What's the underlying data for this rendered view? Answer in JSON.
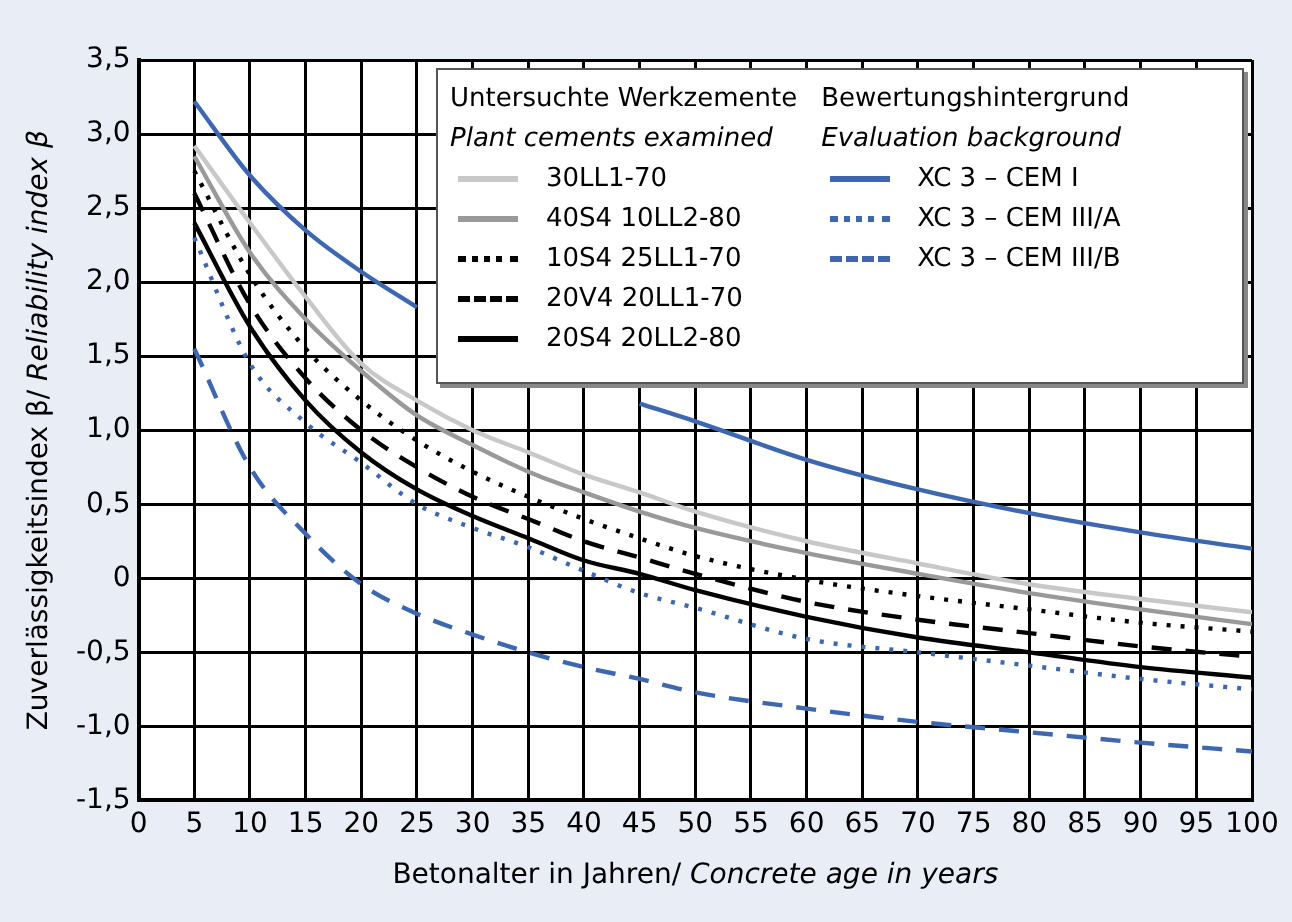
{
  "chart_data": {
    "type": "line",
    "xlabel": "Betonalter in Jahren/ Concrete age in years",
    "ylabel": "Zuverlässigkeitsindex β/ Reliability index β",
    "annotations": [
      "Untersuchte Werkzemente",
      "Plant cements examined",
      "Bewertungshintergrund",
      "Evaluation background"
    ],
    "x": [
      5,
      10,
      15,
      20,
      25,
      30,
      35,
      40,
      45,
      50,
      60,
      70,
      80,
      90,
      100
    ],
    "series": [
      {
        "name": "30LL1-70",
        "color": "#c8c8c8",
        "line_style": "solid",
        "values": [
          2.92,
          2.4,
          1.9,
          1.45,
          1.2,
          1.0,
          0.85,
          0.7,
          0.58,
          0.45,
          0.25,
          0.1,
          -0.04,
          -0.14,
          -0.23
        ]
      },
      {
        "name": "40S4 10LL2-80",
        "color": "#999999",
        "line_style": "solid",
        "values": [
          2.85,
          2.2,
          1.75,
          1.4,
          1.1,
          0.9,
          0.72,
          0.58,
          0.45,
          0.34,
          0.17,
          0.03,
          -0.1,
          -0.21,
          -0.31
        ]
      },
      {
        "name": "10S4 25LL1-70",
        "color": "#000000",
        "line_style": "dotted",
        "values": [
          2.75,
          2.05,
          1.55,
          1.2,
          0.93,
          0.72,
          0.55,
          0.4,
          0.27,
          0.15,
          -0.01,
          -0.12,
          -0.21,
          -0.3,
          -0.36
        ]
      },
      {
        "name": "20V4 20LL1-70",
        "color": "#000000",
        "line_style": "dashed",
        "values": [
          2.6,
          1.85,
          1.35,
          1.0,
          0.75,
          0.55,
          0.4,
          0.25,
          0.14,
          0.03,
          -0.16,
          -0.28,
          -0.37,
          -0.46,
          -0.53
        ]
      },
      {
        "name": "20S4 20LL2-80",
        "color": "#000000",
        "line_style": "solid",
        "values": [
          2.4,
          1.7,
          1.2,
          0.85,
          0.6,
          0.42,
          0.27,
          0.12,
          0.03,
          -0.08,
          -0.26,
          -0.4,
          -0.5,
          -0.6,
          -0.67
        ]
      },
      {
        "name": "XC 3 – CEM I",
        "color": "#3d67b1",
        "line_style": "solid",
        "values": [
          3.22,
          2.72,
          2.35,
          2.07,
          1.83,
          null,
          null,
          null,
          1.18,
          1.06,
          0.8,
          0.6,
          0.44,
          0.31,
          0.2
        ]
      },
      {
        "name": "XC 3 – CEM III/A",
        "color": "#3d67b1",
        "line_style": "dotted",
        "values": [
          2.3,
          1.45,
          1.05,
          0.78,
          0.5,
          0.34,
          0.21,
          0.05,
          -0.1,
          -0.2,
          -0.41,
          -0.5,
          -0.59,
          -0.68,
          -0.75
        ]
      },
      {
        "name": "XC 3 – CEM III/B",
        "color": "#3d67b1",
        "line_style": "dashed",
        "values": [
          1.55,
          0.75,
          0.3,
          -0.04,
          -0.24,
          -0.38,
          -0.5,
          -0.6,
          -0.68,
          -0.77,
          -0.88,
          -0.97,
          -1.04,
          -1.11,
          -1.17
        ]
      }
    ],
    "xlim": [
      0,
      100
    ],
    "xticks": [
      0,
      5,
      10,
      15,
      20,
      25,
      30,
      35,
      40,
      45,
      50,
      55,
      60,
      65,
      70,
      75,
      80,
      85,
      90,
      95,
      100
    ],
    "ylim": [
      -1.5,
      3.5
    ],
    "yticks": [
      {
        "value": -1.5,
        "label": "-1,5"
      },
      {
        "value": -1,
        "label": "-1,0"
      },
      {
        "value": -0.5,
        "label": "-0,5"
      },
      0,
      {
        "value": 0.5,
        "label": "0,5"
      },
      {
        "value": 1,
        "label": "1,0"
      },
      {
        "value": 1.5,
        "label": "1,5"
      },
      {
        "value": 2,
        "label": "2,0"
      },
      {
        "value": 2.5,
        "label": "2,5"
      },
      {
        "value": 3,
        "label": "3,0"
      },
      {
        "value": 3.5,
        "label": "3,5"
      }
    ],
    "grid": true,
    "legend": "top right",
    "marker": "none"
  }
}
